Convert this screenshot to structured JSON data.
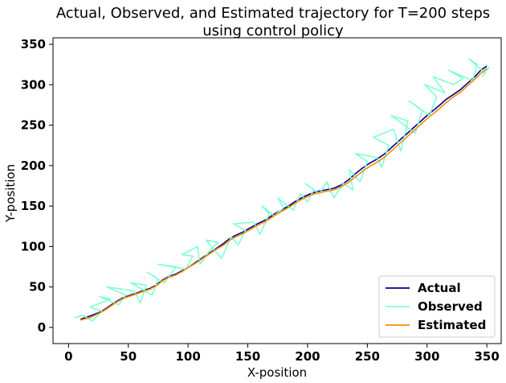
{
  "chart_data": {
    "type": "line",
    "title_line1": "Actual, Observed, and Estimated trajectory for T=200 steps",
    "title_line2": "using control policy",
    "xlabel": "X-position",
    "ylabel": "Y-position",
    "xlim": [
      -13,
      362
    ],
    "ylim": [
      -20,
      358
    ],
    "xticks": [
      0,
      50,
      100,
      150,
      200,
      250,
      300,
      350
    ],
    "yticks": [
      0,
      50,
      100,
      150,
      200,
      250,
      300,
      350
    ],
    "legend_position": "lower-right",
    "grid": false,
    "series": [
      {
        "name": "Actual",
        "color": "#00008b",
        "points": [
          [
            10,
            10
          ],
          [
            18,
            14
          ],
          [
            25,
            18
          ],
          [
            30,
            22
          ],
          [
            36,
            28
          ],
          [
            40,
            32
          ],
          [
            46,
            37
          ],
          [
            52,
            40
          ],
          [
            58,
            43
          ],
          [
            63,
            46
          ],
          [
            68,
            48
          ],
          [
            73,
            52
          ],
          [
            78,
            58
          ],
          [
            84,
            63
          ],
          [
            90,
            66
          ],
          [
            95,
            70
          ],
          [
            100,
            74
          ],
          [
            106,
            80
          ],
          [
            112,
            86
          ],
          [
            118,
            92
          ],
          [
            124,
            98
          ],
          [
            130,
            104
          ],
          [
            135,
            110
          ],
          [
            140,
            114
          ],
          [
            146,
            118
          ],
          [
            152,
            123
          ],
          [
            158,
            128
          ],
          [
            165,
            133
          ],
          [
            172,
            140
          ],
          [
            178,
            145
          ],
          [
            184,
            150
          ],
          [
            190,
            156
          ],
          [
            196,
            161
          ],
          [
            202,
            165
          ],
          [
            208,
            168
          ],
          [
            215,
            170
          ],
          [
            222,
            172
          ],
          [
            228,
            176
          ],
          [
            234,
            182
          ],
          [
            240,
            190
          ],
          [
            246,
            197
          ],
          [
            252,
            203
          ],
          [
            258,
            208
          ],
          [
            264,
            214
          ],
          [
            270,
            222
          ],
          [
            276,
            230
          ],
          [
            282,
            238
          ],
          [
            288,
            246
          ],
          [
            294,
            254
          ],
          [
            300,
            262
          ],
          [
            305,
            268
          ],
          [
            310,
            274
          ],
          [
            316,
            282
          ],
          [
            322,
            288
          ],
          [
            328,
            294
          ],
          [
            334,
            302
          ],
          [
            340,
            310
          ],
          [
            345,
            318
          ],
          [
            350,
            323
          ]
        ]
      },
      {
        "name": "Observed",
        "color": "#7fffd4",
        "points": [
          [
            5,
            12
          ],
          [
            12,
            15
          ],
          [
            20,
            8
          ],
          [
            28,
            20
          ],
          [
            18,
            25
          ],
          [
            35,
            35
          ],
          [
            26,
            38
          ],
          [
            42,
            28
          ],
          [
            48,
            40
          ],
          [
            32,
            50
          ],
          [
            55,
            45
          ],
          [
            60,
            30
          ],
          [
            65,
            52
          ],
          [
            52,
            55
          ],
          [
            70,
            40
          ],
          [
            75,
            60
          ],
          [
            66,
            68
          ],
          [
            80,
            55
          ],
          [
            90,
            75
          ],
          [
            75,
            78
          ],
          [
            98,
            72
          ],
          [
            104,
            88
          ],
          [
            95,
            90
          ],
          [
            108,
            100
          ],
          [
            110,
            78
          ],
          [
            118,
            95
          ],
          [
            125,
            105
          ],
          [
            115,
            108
          ],
          [
            128,
            85
          ],
          [
            136,
            112
          ],
          [
            142,
            102
          ],
          [
            148,
            120
          ],
          [
            138,
            128
          ],
          [
            155,
            130
          ],
          [
            160,
            115
          ],
          [
            168,
            140
          ],
          [
            162,
            150
          ],
          [
            172,
            138
          ],
          [
            180,
            148
          ],
          [
            175,
            160
          ],
          [
            188,
            145
          ],
          [
            194,
            165
          ],
          [
            200,
            155
          ],
          [
            205,
            170
          ],
          [
            198,
            178
          ],
          [
            210,
            165
          ],
          [
            216,
            180
          ],
          [
            222,
            160
          ],
          [
            230,
            178
          ],
          [
            238,
            170
          ],
          [
            235,
            195
          ],
          [
            244,
            180
          ],
          [
            250,
            205
          ],
          [
            240,
            215
          ],
          [
            258,
            210
          ],
          [
            262,
            198
          ],
          [
            268,
            225
          ],
          [
            255,
            235
          ],
          [
            272,
            245
          ],
          [
            278,
            218
          ],
          [
            284,
            255
          ],
          [
            270,
            262
          ],
          [
            290,
            240
          ],
          [
            296,
            268
          ],
          [
            285,
            280
          ],
          [
            302,
            262
          ],
          [
            308,
            285
          ],
          [
            298,
            300
          ],
          [
            315,
            290
          ],
          [
            305,
            310
          ],
          [
            322,
            300
          ],
          [
            330,
            308
          ],
          [
            318,
            318
          ],
          [
            338,
            305
          ],
          [
            342,
            325
          ],
          [
            335,
            332
          ],
          [
            348,
            315
          ],
          [
            352,
            322
          ],
          [
            346,
            310
          ]
        ]
      },
      {
        "name": "Estimated",
        "color": "#ff8c00",
        "points": [
          [
            10,
            9
          ],
          [
            18,
            12
          ],
          [
            25,
            17
          ],
          [
            30,
            21
          ],
          [
            36,
            27
          ],
          [
            40,
            31
          ],
          [
            46,
            36
          ],
          [
            52,
            39
          ],
          [
            58,
            42
          ],
          [
            63,
            45
          ],
          [
            68,
            47
          ],
          [
            73,
            51
          ],
          [
            78,
            57
          ],
          [
            84,
            62
          ],
          [
            90,
            65
          ],
          [
            95,
            69
          ],
          [
            100,
            74
          ],
          [
            106,
            79
          ],
          [
            112,
            85
          ],
          [
            118,
            91
          ],
          [
            124,
            97
          ],
          [
            130,
            102
          ],
          [
            135,
            108
          ],
          [
            140,
            112
          ],
          [
            146,
            116
          ],
          [
            152,
            121
          ],
          [
            158,
            126
          ],
          [
            165,
            131
          ],
          [
            172,
            138
          ],
          [
            178,
            143
          ],
          [
            184,
            148
          ],
          [
            190,
            154
          ],
          [
            196,
            159
          ],
          [
            202,
            163
          ],
          [
            208,
            166
          ],
          [
            215,
            168
          ],
          [
            222,
            170
          ],
          [
            228,
            174
          ],
          [
            234,
            179
          ],
          [
            240,
            186
          ],
          [
            246,
            193
          ],
          [
            252,
            199
          ],
          [
            258,
            204
          ],
          [
            264,
            210
          ],
          [
            270,
            218
          ],
          [
            276,
            226
          ],
          [
            282,
            234
          ],
          [
            288,
            242
          ],
          [
            294,
            250
          ],
          [
            300,
            258
          ],
          [
            305,
            264
          ],
          [
            310,
            270
          ],
          [
            316,
            278
          ],
          [
            322,
            285
          ],
          [
            328,
            291
          ],
          [
            334,
            299
          ],
          [
            340,
            307
          ],
          [
            345,
            314
          ],
          [
            350,
            320
          ]
        ]
      }
    ]
  }
}
